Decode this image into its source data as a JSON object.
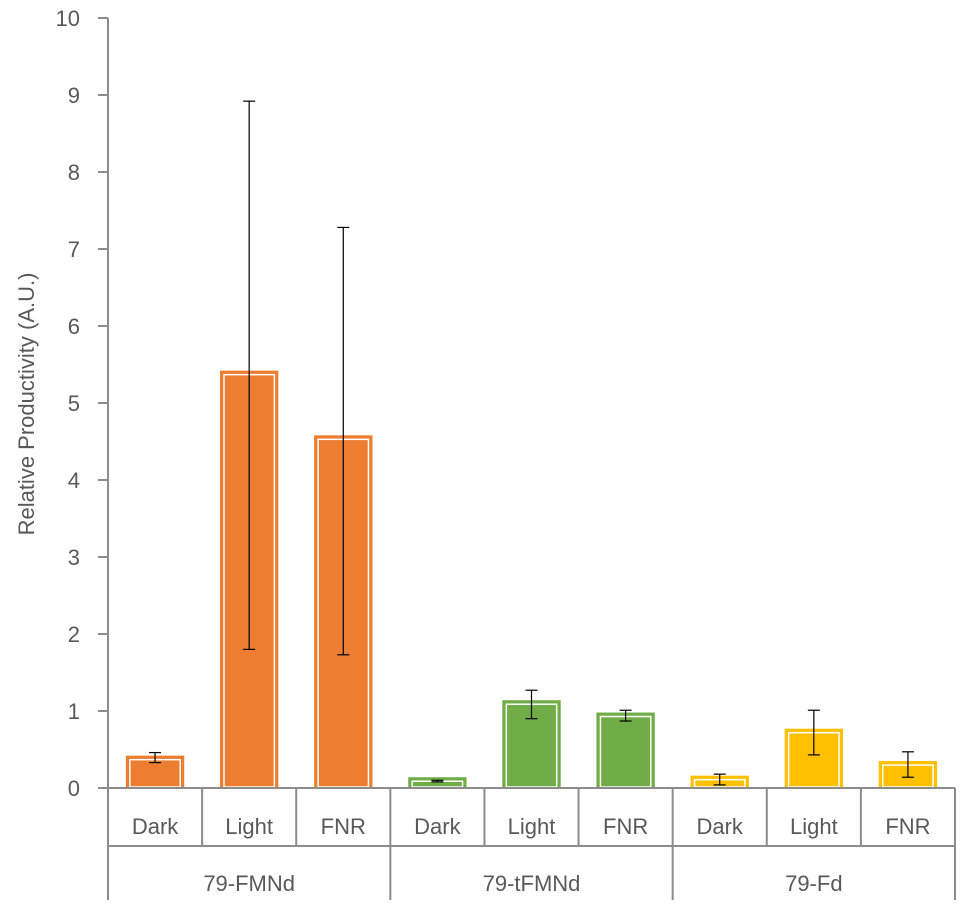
{
  "chart_data": {
    "type": "bar",
    "title": "",
    "ylabel": "Relative Productivity (A.U.)",
    "xlabel": "",
    "ylim": [
      0,
      10
    ],
    "yticks": [
      "0",
      "1",
      "2",
      "3",
      "4",
      "5",
      "6",
      "7",
      "8",
      "9",
      "10"
    ],
    "grid": false,
    "legend": "none",
    "groups": [
      {
        "name": "79-FMNd",
        "color": "#ED7D31",
        "categories": [
          "Dark",
          "Light",
          "FNR"
        ],
        "values": [
          0.42,
          5.42,
          4.58
        ],
        "error_low": [
          0.33,
          1.8,
          1.73
        ],
        "error_high": [
          0.46,
          8.92,
          7.28
        ]
      },
      {
        "name": "79-tFMNd",
        "color": "#70AD47",
        "categories": [
          "Dark",
          "Light",
          "FNR"
        ],
        "values": [
          0.14,
          1.14,
          0.98
        ],
        "error_low": [
          0.08,
          0.9,
          0.87
        ],
        "error_high": [
          0.1,
          1.27,
          1.01
        ]
      },
      {
        "name": "79-Fd",
        "color": "#FFC000",
        "categories": [
          "Dark",
          "Light",
          "FNR"
        ],
        "values": [
          0.16,
          0.77,
          0.35
        ],
        "error_low": [
          0.04,
          0.43,
          0.14
        ],
        "error_high": [
          0.18,
          1.01,
          0.47
        ]
      }
    ]
  }
}
